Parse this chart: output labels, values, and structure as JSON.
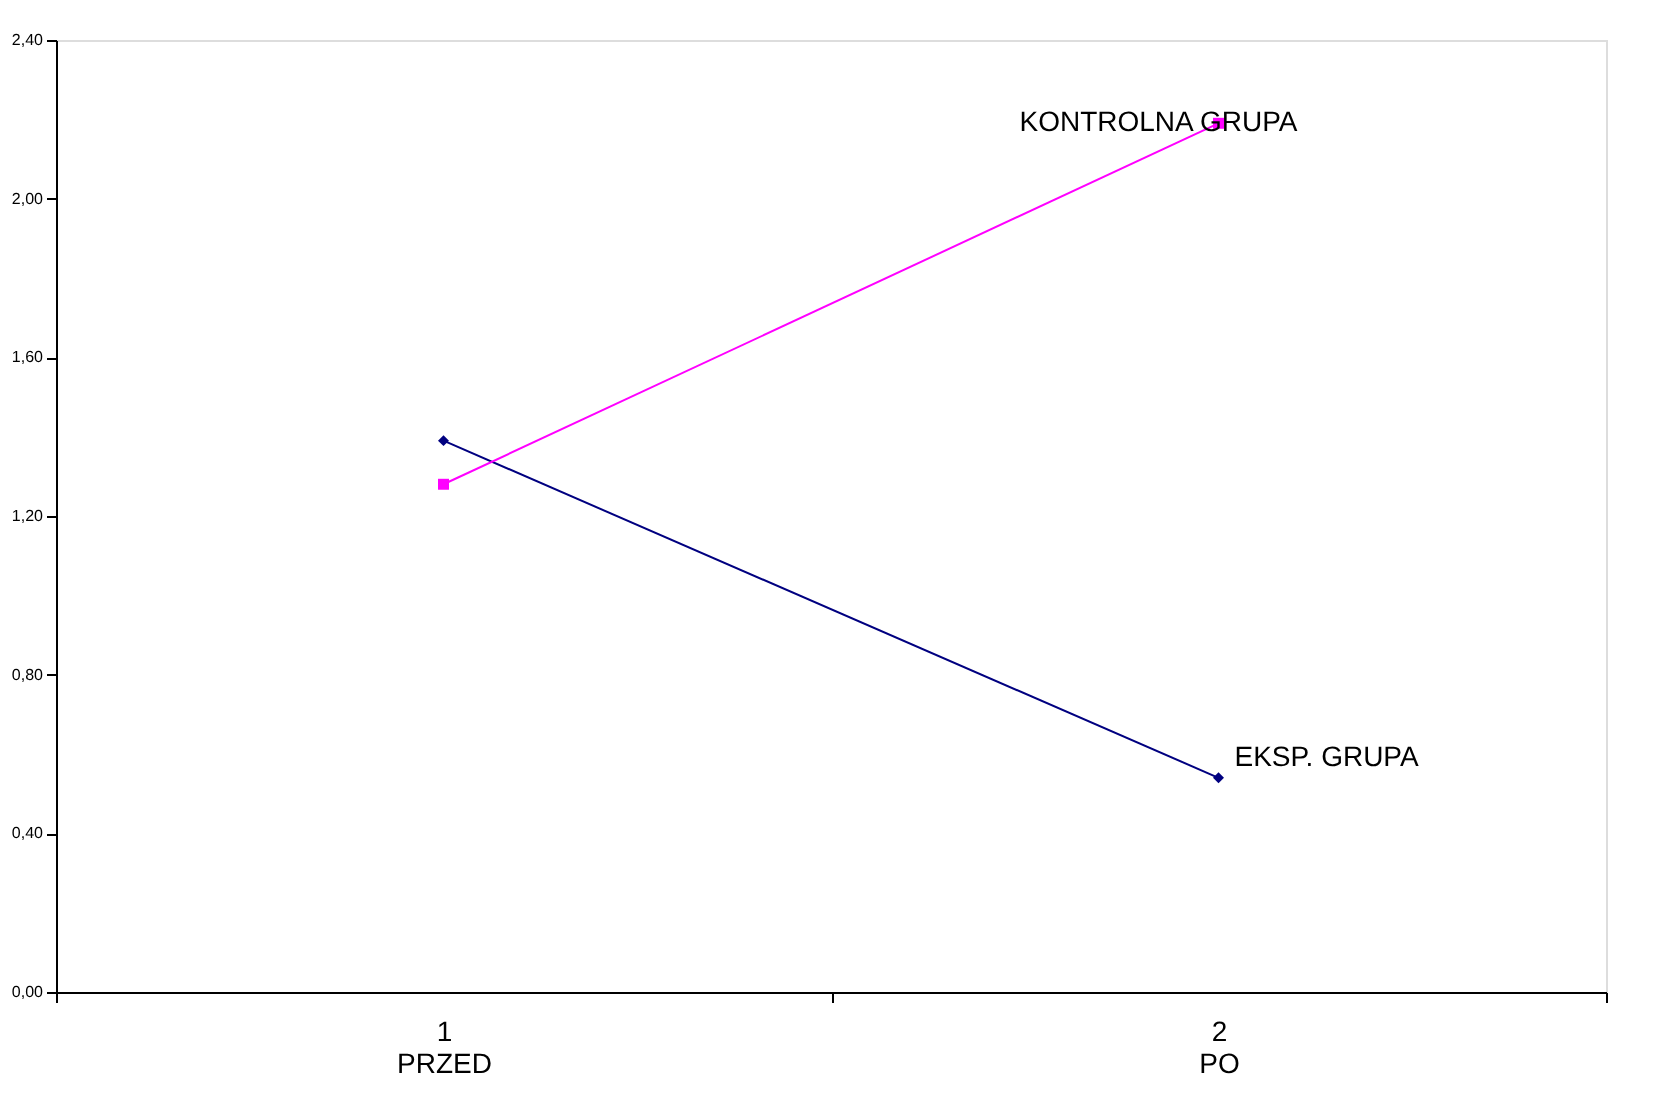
{
  "chart_data": {
    "type": "line",
    "categories": [
      "1\nPRZED",
      "2\nPO"
    ],
    "series": [
      {
        "name": "EKSP. GRUPA",
        "color": "#000080",
        "values": [
          1.39,
          0.54
        ],
        "marker": "diamond"
      },
      {
        "name": "KONTROLNA GRUPA",
        "color": "#ff00ff",
        "values": [
          1.28,
          2.19
        ],
        "marker": "square"
      }
    ],
    "ylim": [
      0,
      2.4
    ],
    "yticks": [
      {
        "value": 0,
        "label": "0,00"
      },
      {
        "value": 0.4,
        "label": "0,40"
      },
      {
        "value": 0.8,
        "label": "0,80"
      },
      {
        "value": 1.2,
        "label": "1,20"
      },
      {
        "value": 1.6,
        "label": "1,60"
      },
      {
        "value": 2.0,
        "label": "2,00"
      },
      {
        "value": 2.4,
        "label": "2,40"
      }
    ],
    "grid": false
  }
}
